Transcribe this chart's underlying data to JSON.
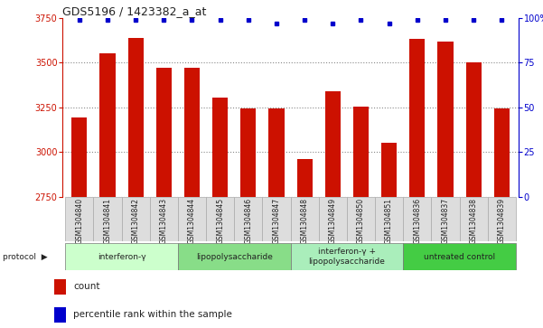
{
  "title": "GDS5196 / 1423382_a_at",
  "samples": [
    "GSM1304840",
    "GSM1304841",
    "GSM1304842",
    "GSM1304843",
    "GSM1304844",
    "GSM1304845",
    "GSM1304846",
    "GSM1304847",
    "GSM1304848",
    "GSM1304849",
    "GSM1304850",
    "GSM1304851",
    "GSM1304836",
    "GSM1304837",
    "GSM1304838",
    "GSM1304839"
  ],
  "counts": [
    3195,
    3555,
    3640,
    3470,
    3470,
    3305,
    3245,
    3245,
    2960,
    3340,
    3255,
    3050,
    3635,
    3620,
    3500,
    3245
  ],
  "percentile_ranks": [
    99,
    99,
    99,
    99,
    99,
    99,
    99,
    97,
    99,
    97,
    99,
    97,
    99,
    99,
    99,
    99
  ],
  "bar_color": "#cc1100",
  "dot_color": "#0000cc",
  "ylim_left": [
    2750,
    3750
  ],
  "ylim_right": [
    0,
    100
  ],
  "yticks_left": [
    2750,
    3000,
    3250,
    3500,
    3750
  ],
  "yticks_right": [
    0,
    25,
    50,
    75,
    100
  ],
  "groups": [
    {
      "label": "interferon-γ",
      "start": 0,
      "end": 4,
      "color": "#ccffcc"
    },
    {
      "label": "lipopolysaccharide",
      "start": 4,
      "end": 8,
      "color": "#88dd88"
    },
    {
      "label": "interferon-γ +\nlipopolysaccharide",
      "start": 8,
      "end": 12,
      "color": "#aaeebb"
    },
    {
      "label": "untreated control",
      "start": 12,
      "end": 16,
      "color": "#44cc44"
    }
  ],
  "background_color": "#ffffff",
  "bar_width": 0.55,
  "xlabel_color": "#cc1100",
  "right_axis_color": "#0000cc",
  "sample_box_color": "#dddddd",
  "sample_box_edge": "#aaaaaa"
}
